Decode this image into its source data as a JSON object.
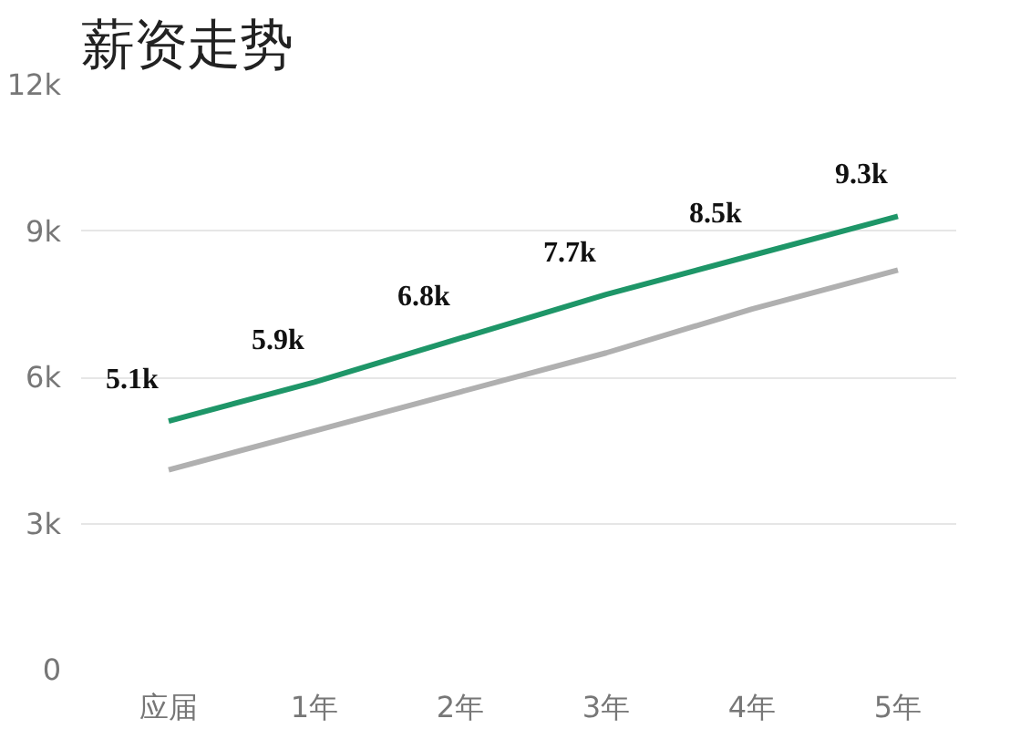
{
  "chart_data": {
    "type": "line",
    "title": "薪资走势",
    "categories": [
      "应届",
      "1年",
      "2年",
      "3年",
      "4年",
      "5年"
    ],
    "series": [
      {
        "color": "#1e9668",
        "values": [
          5.1,
          5.9,
          6.8,
          7.7,
          8.5,
          9.3
        ],
        "value_labels": [
          "5.1k",
          "5.9k",
          "6.8k",
          "7.7k",
          "8.5k",
          "9.3k"
        ]
      },
      {
        "color": "#b0b0b0",
        "values": [
          4.1,
          4.9,
          5.7,
          6.5,
          7.4,
          8.2
        ]
      }
    ],
    "ylim": [
      0,
      12
    ],
    "yticks": [
      {
        "value": 0,
        "label": "0"
      },
      {
        "value": 3,
        "label": "3k"
      },
      {
        "value": 6,
        "label": "6k"
      },
      {
        "value": 9,
        "label": "9k"
      },
      {
        "value": 12,
        "label": "12k"
      }
    ],
    "grid": "y",
    "marker": "none",
    "line_style": "solid"
  }
}
